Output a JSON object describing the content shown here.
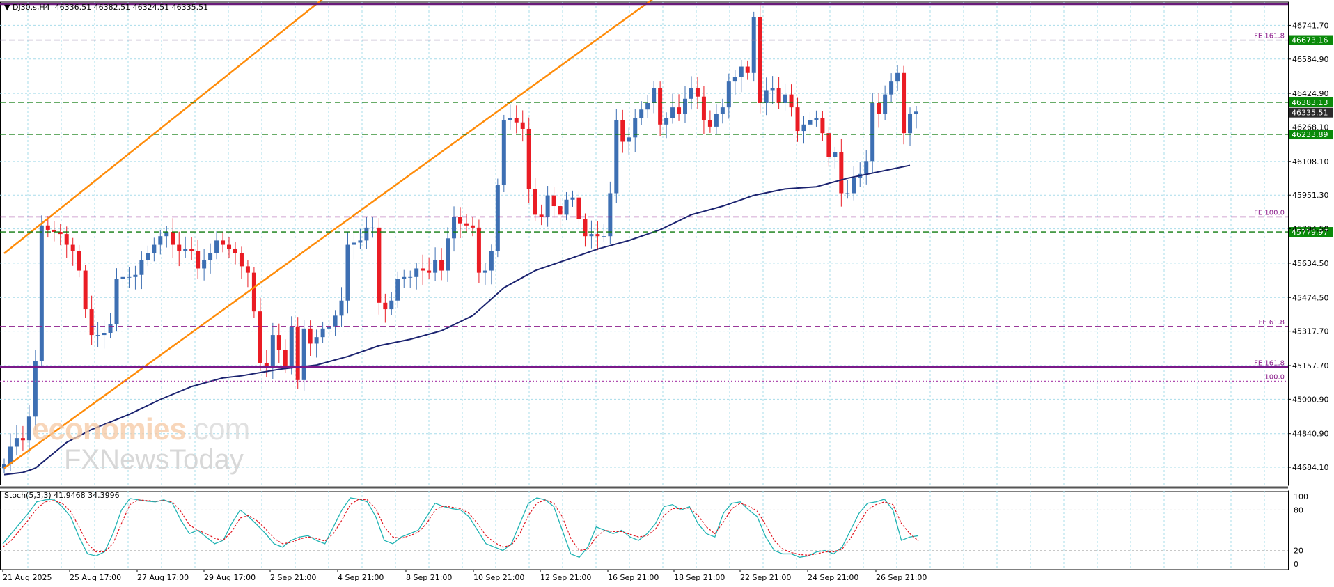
{
  "header": {
    "symbol_tf": "DJ30.s,H4",
    "ohlc": "46336.51 46382.51 46324.51 46335.51"
  },
  "watermark": {
    "brand": "economies",
    "brand_suffix": ".com",
    "sub": "FXNewsToday"
  },
  "colors": {
    "bull": "#3d6fb3",
    "bear": "#ea1c24",
    "ma": "#1b2370",
    "channel": "#ff8c0a",
    "grid": "#a7dcea",
    "fib_dash": "#8b1c8b",
    "support": "#0d7a0d",
    "level_bg": "#0a8a0a"
  },
  "chart_data": {
    "type": "candlestick",
    "y_range": [
      44600,
      46850
    ],
    "y_ticks": [
      "46741.70",
      "46584.90",
      "46424.90",
      "46268.10",
      "46108.10",
      "45951.30",
      "45794.50",
      "45634.50",
      "45474.50",
      "45317.70",
      "45157.70",
      "45000.90",
      "44840.90",
      "44684.10"
    ],
    "x_labels": [
      "21 Aug 2025",
      "25 Aug 17:00",
      "27 Aug 17:00",
      "29 Aug 17:00",
      "2 Sep 21:00",
      "4 Sep 21:00",
      "8 Sep 21:00",
      "10 Sep 21:00",
      "12 Sep 21:00",
      "16 Sep 21:00",
      "18 Sep 21:00",
      "22 Sep 21:00",
      "24 Sep 21:00",
      "26 Sep 21:00"
    ],
    "candles_close": [
      44700,
      44780,
      44820,
      44810,
      44920,
      45180,
      45810,
      45790,
      45780,
      45770,
      45720,
      45690,
      45600,
      45420,
      45300,
      45300,
      45310,
      45350,
      45560,
      45570,
      45570,
      45580,
      45650,
      45680,
      45720,
      45760,
      45780,
      45720,
      45690,
      45700,
      45690,
      45610,
      45650,
      45680,
      45740,
      45720,
      45700,
      45680,
      45620,
      45590,
      45410,
      45170,
      45150,
      45300,
      45230,
      45150,
      45340,
      45090,
      45330,
      45260,
      45290,
      45330,
      45340,
      45390,
      45460,
      45720,
      45730,
      45740,
      45800,
      45800,
      45450,
      45420,
      45460,
      45560,
      45570,
      45570,
      45610,
      45600,
      45590,
      45650,
      45600,
      45750,
      45850,
      45820,
      45810,
      45800,
      45590,
      45600,
      45690,
      46000,
      46300,
      46310,
      46290,
      46260,
      45980,
      45860,
      45850,
      45950,
      45900,
      45860,
      45930,
      45940,
      45840,
      45760,
      45770,
      45760,
      45760,
      45960,
      46300,
      46200,
      46220,
      46310,
      46350,
      46380,
      46450,
      46280,
      46310,
      46360,
      46330,
      46400,
      46450,
      46410,
      46300,
      46270,
      46330,
      46360,
      46480,
      46500,
      46550,
      46520,
      46780,
      46380,
      46440,
      46450,
      46380,
      46420,
      46360,
      46250,
      46280,
      46300,
      46310,
      46240,
      46130,
      46150,
      45960,
      45960,
      46030,
      46050,
      46110,
      46380,
      46330,
      46420,
      46480,
      46520,
      46240,
      46330,
      46340
    ],
    "ma": [
      [
        0,
        44650
      ],
      [
        3,
        44660
      ],
      [
        5,
        44680
      ],
      [
        10,
        44800
      ],
      [
        14,
        44860
      ],
      [
        20,
        44930
      ],
      [
        25,
        45000
      ],
      [
        30,
        45060
      ],
      [
        35,
        45100
      ],
      [
        38,
        45110
      ],
      [
        44,
        45140
      ],
      [
        50,
        45160
      ],
      [
        55,
        45200
      ],
      [
        60,
        45250
      ],
      [
        65,
        45280
      ],
      [
        70,
        45320
      ],
      [
        75,
        45390
      ],
      [
        80,
        45520
      ],
      [
        85,
        45600
      ],
      [
        90,
        45650
      ],
      [
        95,
        45700
      ],
      [
        100,
        45740
      ],
      [
        105,
        45790
      ],
      [
        110,
        45860
      ],
      [
        115,
        45900
      ],
      [
        118,
        45930
      ],
      [
        120,
        45950
      ],
      [
        125,
        45980
      ],
      [
        130,
        45990
      ],
      [
        135,
        46030
      ],
      [
        140,
        46060
      ],
      [
        145,
        46090
      ]
    ],
    "channel_lines": [
      {
        "a": [
          0,
          45680
        ],
        "b": [
          62,
          47120
        ]
      },
      {
        "a": [
          0,
          44680
        ],
        "b": [
          116,
          47120
        ]
      }
    ],
    "levels": [
      {
        "price": 46841,
        "style": "solid",
        "color": "#6a1b7a",
        "label": ""
      },
      {
        "price": 46673.16,
        "style": "dash",
        "color": "#9a8cb0",
        "label": "FE 161.8",
        "badge": "46673.16"
      },
      {
        "price": 46383.13,
        "style": "dash",
        "color": "#0d7a0d",
        "label": "",
        "badge": "46383.13"
      },
      {
        "price": 46335.51,
        "style": "none",
        "color": "#333333",
        "label": "",
        "badge": "46335.51",
        "dark": true
      },
      {
        "price": 46233.89,
        "style": "dash",
        "color": "#0d7a0d",
        "label": "",
        "badge": "46233.89"
      },
      {
        "price": 45850,
        "style": "dash",
        "color": "#8b1c8b",
        "label": "FE 100.0"
      },
      {
        "price": 45779.97,
        "style": "dash",
        "color": "#0d7a0d",
        "label": "",
        "badge": "45779.97"
      },
      {
        "price": 45340,
        "style": "dash",
        "color": "#8b1c8b",
        "label": "FE 61.8"
      },
      {
        "price": 45150,
        "style": "solid",
        "color": "#7a1a8a",
        "label": "FE 161.8"
      },
      {
        "price": 45085,
        "style": "dot",
        "color": "#b04bb0",
        "label": "100.0"
      }
    ],
    "stoch": {
      "title": "Stoch(5,3,3) 41.9468 34.3996",
      "y_labels": [
        "100",
        "80",
        "20",
        "0"
      ],
      "k": [
        30,
        45,
        60,
        75,
        92,
        95,
        96,
        85,
        70,
        40,
        15,
        12,
        18,
        45,
        80,
        97,
        95,
        93,
        92,
        95,
        90,
        65,
        45,
        50,
        40,
        30,
        35,
        60,
        80,
        70,
        58,
        45,
        30,
        25,
        35,
        40,
        42,
        35,
        30,
        55,
        80,
        98,
        96,
        92,
        70,
        35,
        30,
        40,
        45,
        50,
        70,
        90,
        85,
        82,
        80,
        70,
        50,
        30,
        25,
        20,
        30,
        60,
        90,
        98,
        95,
        85,
        50,
        15,
        10,
        25,
        55,
        50,
        45,
        50,
        40,
        35,
        45,
        60,
        85,
        88,
        80,
        85,
        60,
        45,
        40,
        75,
        90,
        92,
        80,
        70,
        40,
        20,
        15,
        15,
        10,
        12,
        18,
        20,
        15,
        25,
        50,
        75,
        90,
        92,
        96,
        80,
        35,
        40,
        41.95
      ],
      "d": [
        25,
        35,
        50,
        65,
        82,
        92,
        94,
        90,
        78,
        55,
        30,
        18,
        18,
        30,
        60,
        88,
        95,
        94,
        93,
        94,
        92,
        78,
        58,
        50,
        45,
        38,
        35,
        48,
        68,
        72,
        64,
        52,
        38,
        30,
        32,
        37,
        40,
        38,
        34,
        45,
        65,
        88,
        96,
        95,
        82,
        55,
        40,
        38,
        42,
        47,
        60,
        80,
        86,
        84,
        82,
        75,
        60,
        42,
        32,
        25,
        28,
        45,
        72,
        90,
        95,
        90,
        70,
        38,
        20,
        22,
        40,
        50,
        48,
        48,
        44,
        40,
        42,
        52,
        72,
        82,
        82,
        83,
        72,
        55,
        45,
        62,
        82,
        90,
        86,
        78,
        58,
        35,
        22,
        17,
        14,
        13,
        15,
        18,
        18,
        22,
        38,
        60,
        80,
        88,
        92,
        88,
        60,
        45,
        34.4
      ]
    }
  }
}
